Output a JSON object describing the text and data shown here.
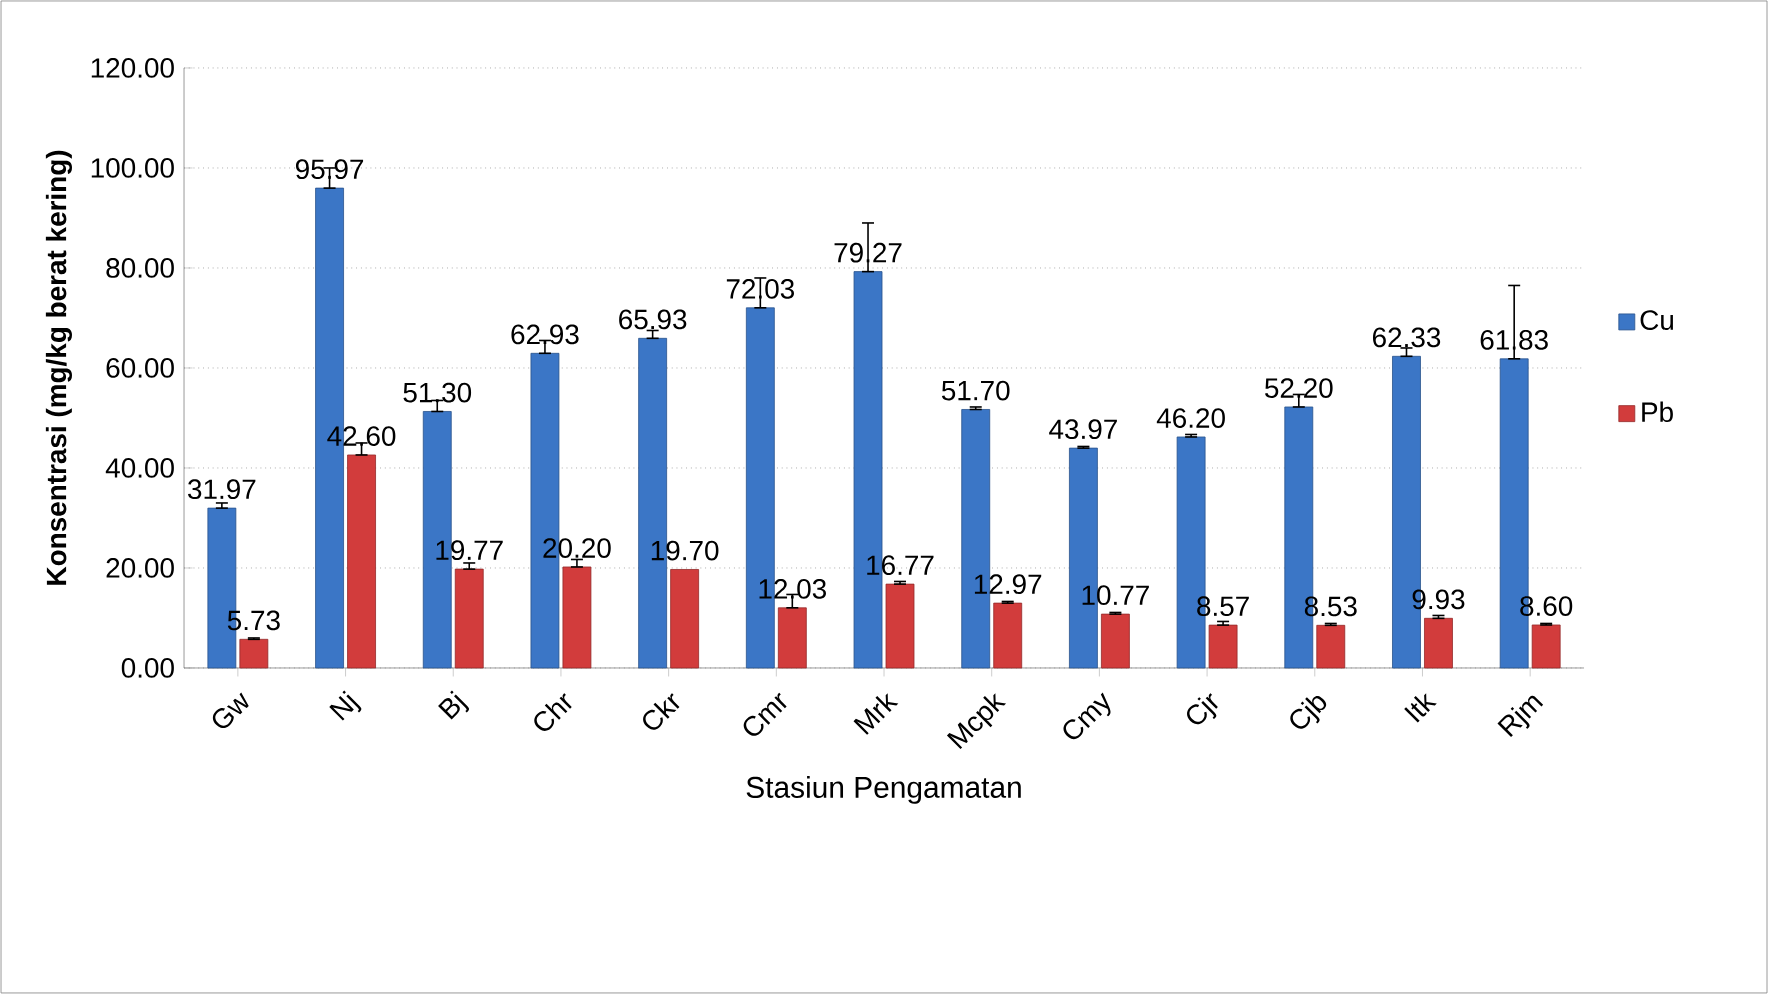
{
  "chart_data": {
    "type": "bar",
    "xlabel": "Stasiun Pengamatan",
    "ylabel": "Konsentrasi (mg/kg berat kering)",
    "categories": [
      "Gw",
      "Nj",
      "Bj",
      "Chr",
      "Ckr",
      "Cmr",
      "Mrk",
      "Mcpk",
      "Cmy",
      "Cjr",
      "Cjb",
      "Itk",
      "Rjm"
    ],
    "series": [
      {
        "name": "Cu",
        "color": "#3b76c6",
        "values": [
          31.97,
          95.97,
          51.3,
          62.93,
          65.93,
          72.03,
          79.27,
          51.7,
          43.97,
          46.2,
          52.2,
          62.33,
          61.83
        ],
        "value_labels": [
          "31.97",
          "95.97",
          "51.30",
          "62.93",
          "65.93",
          "72.03",
          "79.27",
          "51.70",
          "43.97",
          "46.20",
          "52.20",
          "62.33",
          "61.83"
        ],
        "errors": [
          [
            31.97,
            33
          ],
          [
            95.97,
            100
          ],
          [
            51.3,
            53.5
          ],
          [
            62.93,
            65.5
          ],
          [
            65.93,
            67.5
          ],
          [
            72.03,
            78
          ],
          [
            79.27,
            89
          ],
          [
            51.7,
            52.2
          ],
          [
            43.97,
            44.3
          ],
          [
            46.2,
            46.7
          ],
          [
            52.2,
            54.7
          ],
          [
            62.33,
            64
          ],
          [
            61.83,
            76.5
          ]
        ]
      },
      {
        "name": "Pb",
        "color": "#d23c3c",
        "values": [
          5.73,
          42.6,
          19.77,
          20.2,
          19.7,
          12.03,
          16.77,
          12.97,
          10.77,
          8.57,
          8.53,
          9.93,
          8.6
        ],
        "value_labels": [
          "5.73",
          "42.60",
          "19.77",
          "20.20",
          "19.70",
          "12.03",
          "16.77",
          "12.97",
          "10.77",
          "8.57",
          "8.53",
          "9.93",
          "8.60"
        ],
        "errors": [
          [
            5.73,
            6
          ],
          [
            42.6,
            45
          ],
          [
            19.77,
            21
          ],
          [
            20.2,
            21.7
          ],
          null,
          [
            12.03,
            14.7
          ],
          [
            16.77,
            17.3
          ],
          [
            12.97,
            13.3
          ],
          [
            10.77,
            11.1
          ],
          [
            8.57,
            9.3
          ],
          [
            8.53,
            8.9
          ],
          [
            9.93,
            10.5
          ],
          [
            8.6,
            8.9
          ]
        ]
      }
    ],
    "ylim": [
      0,
      120
    ],
    "yticks": [
      {
        "value": 0,
        "label": "0.00"
      },
      {
        "value": 20,
        "label": "20.00"
      },
      {
        "value": 40,
        "label": "40.00"
      },
      {
        "value": 60,
        "label": "60.00"
      },
      {
        "value": 80,
        "label": "80.00"
      },
      {
        "value": 100,
        "label": "100.00"
      },
      {
        "value": 120,
        "label": "120.00"
      }
    ],
    "grid": "y",
    "legend": "right"
  }
}
